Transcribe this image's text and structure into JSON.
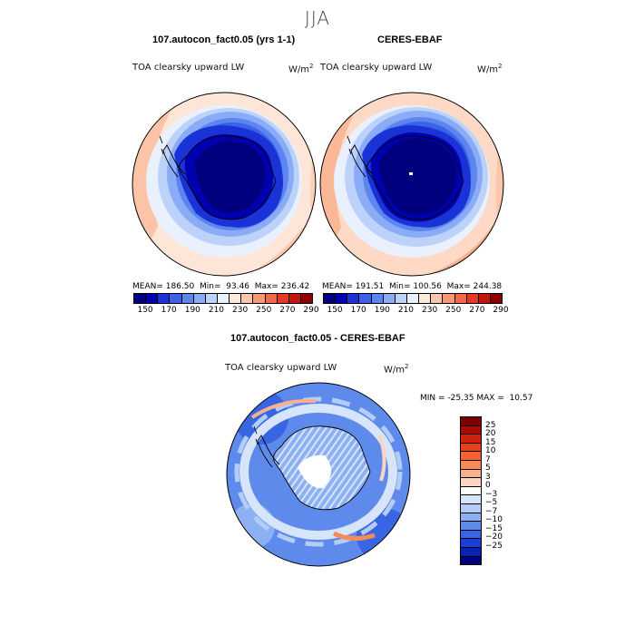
{
  "page_title": "JJA",
  "chart_data": [
    {
      "type": "heatmap",
      "projection": "south polar stereographic",
      "title": "107.autocon_fact0.05 (yrs 1-1)",
      "variable": "TOA clearsky upward LW",
      "units": "W/m",
      "units_sup": "2",
      "stats": {
        "mean_label": "MEAN=",
        "mean": "186.50",
        "min_label": "Min=",
        "min": "93.46",
        "max_label": "Max=",
        "max": "236.42"
      },
      "colorbar_ticks": [
        "150",
        "170",
        "190",
        "210",
        "230",
        "250",
        "270",
        "290"
      ],
      "colorbar_colors": [
        "#00007f",
        "#0000b0",
        "#1a33d6",
        "#3c62ea",
        "#5d85ef",
        "#8aabf5",
        "#bcd2fa",
        "#e8f1fd",
        "#fde9dc",
        "#fbc6a9",
        "#f79a74",
        "#f2694a",
        "#e23b23",
        "#c0160d",
        "#8e0000"
      ]
    },
    {
      "type": "heatmap",
      "projection": "south polar stereographic",
      "title": "CERES-EBAF",
      "variable": "TOA clearsky upward LW",
      "units": "W/m",
      "units_sup": "2",
      "stats": {
        "mean_label": "MEAN=",
        "mean": "191.51",
        "min_label": "Min=",
        "min": "100.56",
        "max_label": "Max=",
        "max": "244.38"
      },
      "colorbar_ticks": [
        "150",
        "170",
        "190",
        "210",
        "230",
        "250",
        "270",
        "290"
      ],
      "colorbar_colors": [
        "#00007f",
        "#0000b0",
        "#1a33d6",
        "#3c62ea",
        "#5d85ef",
        "#8aabf5",
        "#bcd2fa",
        "#e8f1fd",
        "#fde9dc",
        "#fbc6a9",
        "#f79a74",
        "#f2694a",
        "#e23b23",
        "#c0160d",
        "#8e0000"
      ]
    },
    {
      "type": "heatmap",
      "projection": "south polar stereographic",
      "title": "107.autocon_fact0.05 - CERES-EBAF",
      "variable": "TOA clearsky upward LW",
      "units": "W/m",
      "units_sup": "2",
      "stats": {
        "min_label": "MIN =",
        "min": "-25.35",
        "max_label": "MAX =",
        "max": "10.57"
      },
      "colorbar_ticks": [
        "25",
        "20",
        "15",
        "10",
        "7",
        "5",
        "3",
        "0",
        "−3",
        "−5",
        "−7",
        "−10",
        "−15",
        "−20",
        "−25"
      ],
      "colorbar_colors": [
        "#7f0000",
        "#a80a05",
        "#d0210f",
        "#eb3f1c",
        "#f4622f",
        "#f78a5a",
        "#f9b08c",
        "#fbd5c1",
        "#ffffff",
        "#d7e5fb",
        "#b3cdf7",
        "#8db0f2",
        "#5e8aec",
        "#3865e3",
        "#1b3fd8",
        "#0922b5",
        "#00007f"
      ]
    }
  ]
}
